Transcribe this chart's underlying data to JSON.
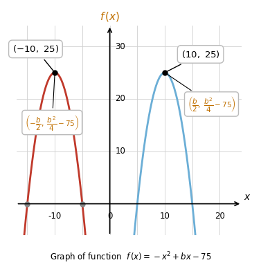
{
  "title": "$f\\,(x)$",
  "xlabel": "$x$",
  "xlim": [
    -17,
    24
  ],
  "ylim": [
    -6,
    34
  ],
  "xtick_positions": [
    -15,
    -10,
    -5,
    0,
    5,
    10,
    15,
    20
  ],
  "xtick_labels": [
    "",
    "-10",
    "",
    "0",
    "",
    "10",
    "",
    "20"
  ],
  "ytick_positions": [
    10,
    20,
    30
  ],
  "ytick_labels": [
    "10",
    "20",
    "30"
  ],
  "red_b": -20,
  "blue_b": 20,
  "red_color": "#c0392b",
  "blue_color": "#6baed6",
  "dot_color": "#888888",
  "subtitle": "Graph of function  $f\\,(x)=-x^2+bx-75$",
  "red_pt_label": "$(-10,\\ 25)$",
  "blue_pt_label": "$(10,\\ 25)$",
  "red_formula": "$\\left(-\\dfrac{b}{2},\\ \\dfrac{b^2}{4}-75\\right)$",
  "blue_formula": "$\\left(\\dfrac{b}{2},\\ \\dfrac{b^2}{4}-75\\right)$",
  "formula_color": "#c07000"
}
